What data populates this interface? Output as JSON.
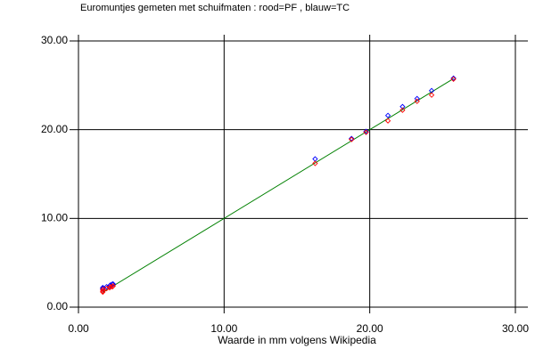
{
  "chart_data": {
    "type": "scatter",
    "title": "Euromuntjes gemeten met schuifmaten : rood=PF , blauw=TC",
    "x_label": "Waarde in mm volgens Wikipedia",
    "xlim": [
      0,
      30
    ],
    "ylim": [
      0,
      30
    ],
    "xticks": [
      {
        "value": 0,
        "label": "0.00"
      },
      {
        "value": 10,
        "label": "10.00"
      },
      {
        "value": 20,
        "label": "20.00"
      },
      {
        "value": 30,
        "label": "30.00"
      }
    ],
    "yticks": [
      {
        "value": 0,
        "label": "0.00"
      },
      {
        "value": 10,
        "label": "10.00"
      },
      {
        "value": 20,
        "label": "20.00"
      },
      {
        "value": 30,
        "label": "30.00"
      }
    ],
    "grid": true,
    "series": [
      {
        "color": "#0000ff",
        "x": [
          1.67,
          1.67,
          1.67,
          1.93,
          2.14,
          2.2,
          2.33,
          2.38,
          16.25,
          18.75,
          19.75,
          21.25,
          22.25,
          23.25,
          24.25,
          25.75
        ],
        "values": [
          2.0,
          2.1,
          2.2,
          2.3,
          2.4,
          2.5,
          2.6,
          2.6,
          16.7,
          19.0,
          19.8,
          21.6,
          22.6,
          23.5,
          24.4,
          25.8
        ]
      },
      {
        "color": "#ff0000",
        "x": [
          1.67,
          1.67,
          1.67,
          1.93,
          2.14,
          2.2,
          2.33,
          2.38,
          16.25,
          18.75,
          19.75,
          21.25,
          22.25,
          23.25,
          24.25,
          25.75
        ],
        "values": [
          1.7,
          1.8,
          2.0,
          2.1,
          2.2,
          2.3,
          2.3,
          2.4,
          16.2,
          18.9,
          19.7,
          21.0,
          22.2,
          23.2,
          23.9,
          25.7
        ]
      }
    ],
    "reference_line": {
      "color": "#008000",
      "x": [
        1.67,
        25.75
      ],
      "values": [
        1.67,
        25.75
      ]
    }
  }
}
